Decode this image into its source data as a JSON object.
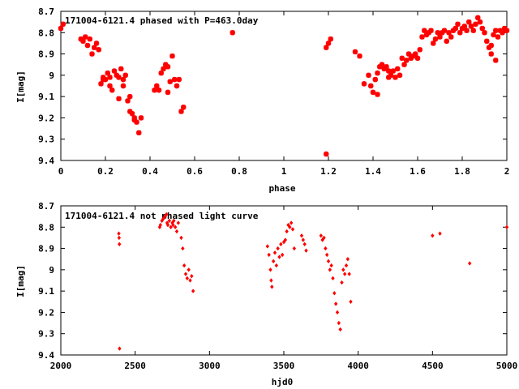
{
  "chart_data": [
    {
      "type": "scatter",
      "title": "171004-6121.4 phased with P=463.0day",
      "xlabel": "phase",
      "ylabel": "I[mag]",
      "xlim": [
        0,
        2
      ],
      "ylim": [
        8.7,
        9.4
      ],
      "y_inverted": true,
      "marker": "star",
      "color": "#ff0000",
      "xticks": [
        0,
        0.2,
        0.4,
        0.6,
        0.8,
        1,
        1.2,
        1.4,
        1.6,
        1.8,
        2
      ],
      "xtick_labels": [
        "0",
        "0.2",
        "0.4",
        "0.6",
        "0.8",
        "1",
        "1.2",
        "1.4",
        "1.6",
        "1.8",
        "2"
      ],
      "yticks": [
        8.7,
        8.8,
        8.9,
        9.0,
        9.1,
        9.2,
        9.3,
        9.4
      ],
      "ytick_labels": [
        "8.7",
        "8.8",
        "8.9",
        "9",
        "9.1",
        "9.2",
        "9.3",
        "9.4"
      ],
      "x": [
        0.0,
        0.01,
        0.09,
        0.1,
        0.11,
        0.12,
        0.13,
        0.14,
        0.15,
        0.16,
        0.17,
        0.18,
        0.19,
        0.2,
        0.21,
        0.22,
        0.23,
        0.24,
        0.25,
        0.26,
        0.27,
        0.28,
        0.29,
        0.3,
        0.31,
        0.32,
        0.33,
        0.34,
        0.35,
        0.36,
        0.42,
        0.43,
        0.44,
        0.45,
        0.46,
        0.47,
        0.48,
        0.49,
        0.5,
        0.51,
        0.52,
        0.53,
        0.54,
        0.55,
        0.77,
        1.19,
        1.2,
        1.21,
        1.32,
        1.34,
        1.36,
        1.38,
        1.39,
        1.4,
        1.41,
        1.42,
        1.43,
        1.44,
        1.45,
        1.46,
        1.47,
        1.48,
        1.49,
        1.5,
        1.51,
        1.52,
        1.53,
        1.54,
        1.55,
        1.56,
        1.57,
        1.58,
        1.59,
        1.6,
        1.61,
        1.62,
        1.63,
        1.64,
        1.65,
        1.66,
        1.67,
        1.68,
        1.69,
        1.7,
        1.71,
        1.72,
        1.73,
        1.74,
        1.75,
        1.76,
        1.77,
        1.78,
        1.79,
        1.8,
        1.81,
        1.82,
        1.83,
        1.84,
        1.85,
        1.86,
        1.87,
        1.88,
        1.89,
        1.9,
        1.91,
        1.92,
        1.93,
        1.94,
        1.95,
        1.96,
        1.97,
        1.98,
        1.99,
        2.0,
        0.19,
        0.22,
        0.26,
        0.28,
        0.31,
        0.33,
        0.48,
        1.42,
        1.47,
        1.93,
        1.95
      ],
      "y": [
        8.78,
        8.76,
        8.83,
        8.84,
        8.82,
        8.86,
        8.83,
        8.9,
        8.87,
        8.85,
        8.88,
        9.04,
        9.01,
        9.02,
        8.99,
        9.05,
        9.07,
        8.98,
        9.0,
        9.01,
        8.97,
        9.02,
        9.0,
        9.12,
        9.17,
        9.18,
        9.2,
        9.22,
        9.27,
        9.2,
        9.07,
        9.05,
        9.07,
        8.99,
        8.97,
        8.95,
        8.96,
        9.03,
        8.91,
        9.02,
        9.05,
        9.02,
        9.17,
        9.15,
        8.8,
        8.87,
        8.85,
        8.83,
        8.89,
        8.91,
        9.04,
        9.0,
        9.05,
        9.08,
        9.02,
        8.99,
        8.96,
        8.95,
        8.97,
        8.96,
        8.98,
        9.0,
        8.98,
        9.01,
        8.97,
        9.0,
        8.92,
        8.95,
        8.93,
        8.9,
        8.92,
        8.91,
        8.9,
        8.92,
        8.88,
        8.82,
        8.79,
        8.81,
        8.8,
        8.79,
        8.85,
        8.83,
        8.8,
        8.82,
        8.8,
        8.79,
        8.84,
        8.8,
        8.82,
        8.79,
        8.78,
        8.76,
        8.8,
        8.78,
        8.77,
        8.79,
        8.75,
        8.77,
        8.79,
        8.76,
        8.73,
        8.75,
        8.78,
        8.8,
        8.84,
        8.87,
        8.86,
        8.81,
        8.79,
        8.82,
        8.79,
        8.8,
        8.78,
        8.79,
        9.02,
        9.01,
        9.11,
        9.05,
        9.1,
        9.21,
        9.08,
        9.09,
        9.01,
        8.9,
        8.93
      ],
      "outliers": {
        "x": [
          1.19
        ],
        "y": [
          9.37
        ]
      }
    },
    {
      "type": "scatter",
      "title": "171004-6121.4 not phased light curve",
      "xlabel": "hjd0",
      "ylabel": "I[mag]",
      "xlim": [
        2000,
        5000
      ],
      "ylim": [
        8.7,
        9.4
      ],
      "y_inverted": true,
      "marker": "diamond",
      "color": "#ff0000",
      "xticks": [
        2000,
        2500,
        3000,
        3500,
        4000,
        4500,
        5000
      ],
      "xtick_labels": [
        "2000",
        "2500",
        "3000",
        "3500",
        "4000",
        "4500",
        "5000"
      ],
      "yticks": [
        8.7,
        8.8,
        8.9,
        9.0,
        9.1,
        9.2,
        9.3,
        9.4
      ],
      "ytick_labels": [
        "8.7",
        "8.8",
        "8.9",
        "9",
        "9.1",
        "9.2",
        "9.3",
        "9.4"
      ],
      "x": [
        2390,
        2392,
        2394,
        2395,
        2665,
        2670,
        2680,
        2690,
        2700,
        2710,
        2715,
        2720,
        2730,
        2740,
        2750,
        2755,
        2760,
        2770,
        2780,
        2790,
        2810,
        2820,
        2830,
        2840,
        2850,
        2860,
        2870,
        2880,
        2890,
        3390,
        3400,
        3410,
        3415,
        3420,
        3430,
        3440,
        3450,
        3460,
        3470,
        3480,
        3490,
        3500,
        3510,
        3520,
        3530,
        3540,
        3550,
        3560,
        3570,
        3620,
        3630,
        3640,
        3650,
        3750,
        3760,
        3770,
        3780,
        3790,
        3800,
        3810,
        3820,
        3830,
        3840,
        3850,
        3860,
        3870,
        3880,
        3890,
        3900,
        3910,
        3920,
        3930,
        3940,
        3950,
        4500,
        4550,
        4750,
        5000
      ],
      "y": [
        8.83,
        8.85,
        8.88,
        9.37,
        8.8,
        8.79,
        8.77,
        8.76,
        8.75,
        8.74,
        8.78,
        8.79,
        8.77,
        8.8,
        8.78,
        8.79,
        8.77,
        8.8,
        8.82,
        8.78,
        8.85,
        8.9,
        8.98,
        9.02,
        9.04,
        9.0,
        9.05,
        9.03,
        9.1,
        8.89,
        8.93,
        9.0,
        9.05,
        9.08,
        8.96,
        8.92,
        8.98,
        8.9,
        8.94,
        8.88,
        8.93,
        8.87,
        8.86,
        8.82,
        8.79,
        8.8,
        8.78,
        8.81,
        8.9,
        8.84,
        8.86,
        8.88,
        8.91,
        8.84,
        8.86,
        8.85,
        8.9,
        8.93,
        8.96,
        9.0,
        8.98,
        9.04,
        9.11,
        9.16,
        9.2,
        9.25,
        9.28,
        9.06,
        9.0,
        9.02,
        8.98,
        8.95,
        9.02,
        9.15,
        8.84,
        8.83,
        8.97,
        8.8
      ]
    }
  ]
}
